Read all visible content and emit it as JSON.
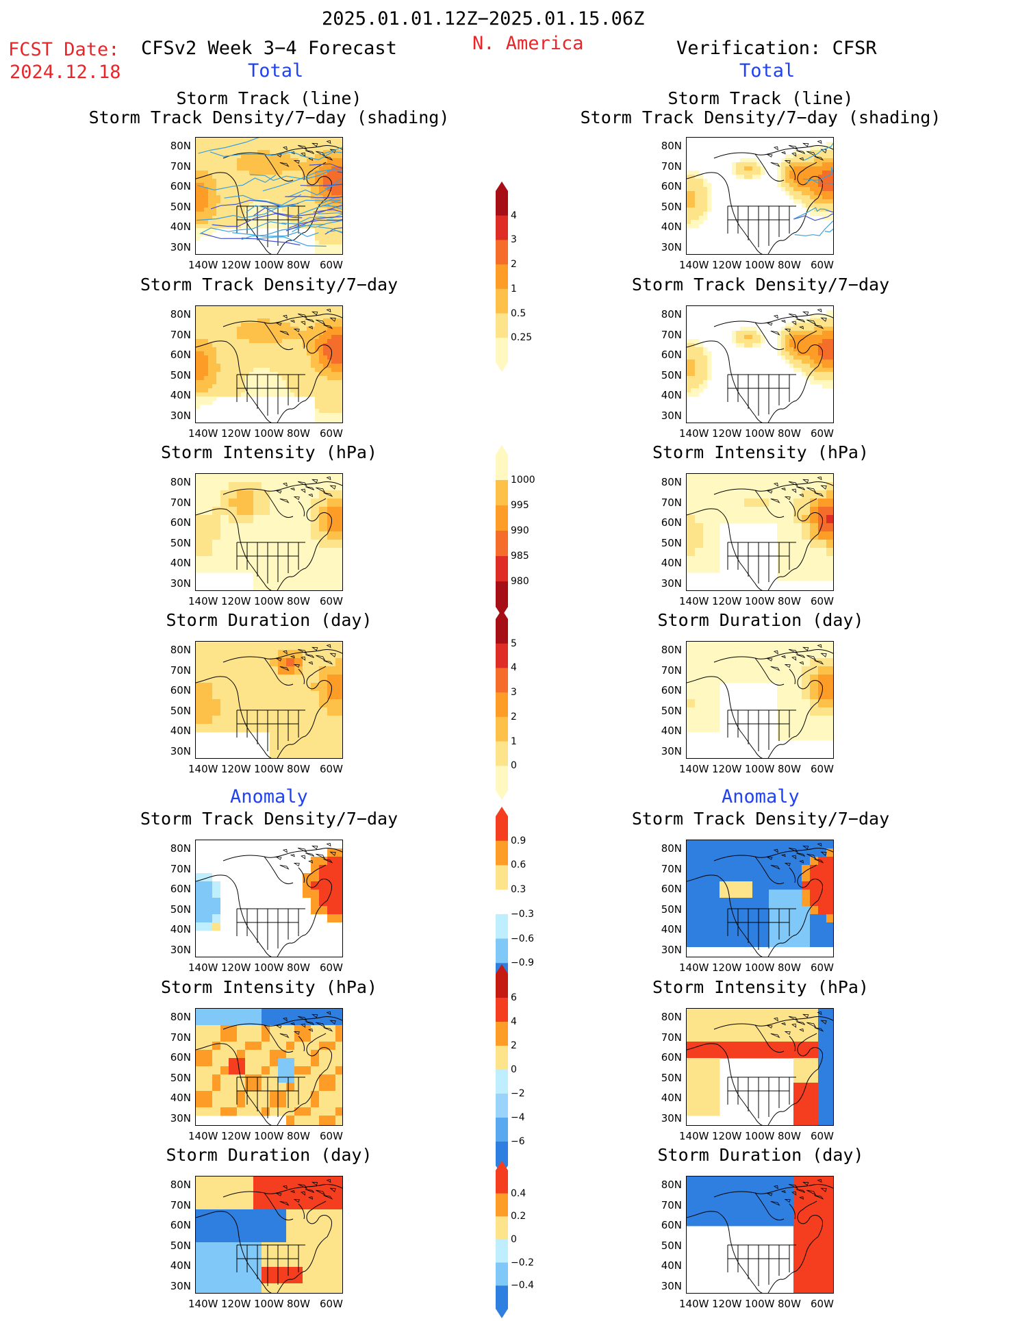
{
  "header": {
    "period": "2025.01.01.12Z−2025.01.15.06Z",
    "fcst_label": "FCST Date:",
    "fcst_date": "2024.12.18",
    "model_title": "CFSv2 Week 3−4 Forecast",
    "region": "N. America",
    "verification": "Verification: CFSR",
    "left_total": "Total",
    "right_total": "Total",
    "left_anomaly": "Anomaly",
    "right_anomaly": "Anomaly"
  },
  "axes": {
    "lat_labels": [
      "80N",
      "70N",
      "60N",
      "50N",
      "40N",
      "30N"
    ],
    "lon_labels": [
      "140W",
      "120W",
      "100W",
      "80W",
      "60W"
    ]
  },
  "panels": {
    "left": [
      {
        "title_line1": "Storm Track (line)",
        "title_line2": "Storm Track Density/7−day (shading)"
      },
      {
        "title_line1": "",
        "title_line2": "Storm Track Density/7−day"
      },
      {
        "title_line1": "",
        "title_line2": "Storm Intensity (hPa)"
      },
      {
        "title_line1": "",
        "title_line2": "Storm Duration (day)"
      },
      {
        "title_line1": "",
        "title_line2": "Storm Track Density/7−day"
      },
      {
        "title_line1": "",
        "title_line2": "Storm Intensity (hPa)"
      },
      {
        "title_line1": "",
        "title_line2": "Storm Duration (day)"
      }
    ],
    "right": [
      {
        "title_line1": "Storm Track (line)",
        "title_line2": "Storm Track Density/7−day (shading)"
      },
      {
        "title_line1": "",
        "title_line2": "Storm Track Density/7−day"
      },
      {
        "title_line1": "",
        "title_line2": "Storm Intensity (hPa)"
      },
      {
        "title_line1": "",
        "title_line2": "Storm Duration (day)"
      },
      {
        "title_line1": "",
        "title_line2": "Storm Track Density/7−day"
      },
      {
        "title_line1": "",
        "title_line2": "Storm Intensity (hPa)"
      },
      {
        "title_line1": "",
        "title_line2": "Storm Duration (day)"
      }
    ]
  },
  "colorbars": {
    "density": {
      "ticks": [
        "4",
        "3",
        "2",
        "1",
        "0.5",
        "0.25"
      ],
      "colors": [
        "#a50f15",
        "#de2d26",
        "#f46d2a",
        "#fd9d27",
        "#fdc048",
        "#fde38a",
        "#fff8c0"
      ]
    },
    "intensity": {
      "ticks": [
        "1000",
        "995",
        "990",
        "985",
        "980"
      ],
      "colors": [
        "#fff8c0",
        "#fdc048",
        "#fd9d27",
        "#f46d2a",
        "#de2d26",
        "#a50f15"
      ]
    },
    "duration": {
      "ticks": [
        "5",
        "4",
        "3",
        "2",
        "1",
        "0"
      ],
      "colors": [
        "#a50f15",
        "#de2d26",
        "#f46d2a",
        "#fd9d27",
        "#fdc048",
        "#fde38a",
        "#fff8c0"
      ]
    },
    "density_anom": {
      "ticks": [
        "0.9",
        "0.6",
        "0.3",
        "−0.3",
        "−0.6",
        "−0.9"
      ],
      "colors": [
        "#f43e1f",
        "#fd9d27",
        "#fde38a",
        "#ffffff",
        "#bfefff",
        "#7fc8f8",
        "#2f7fe0"
      ]
    },
    "intensity_anom": {
      "ticks": [
        "6",
        "4",
        "2",
        "0",
        "−2",
        "−4",
        "−6"
      ],
      "colors": [
        "#c41a12",
        "#f43e1f",
        "#fd9d27",
        "#fde38a",
        "#bfefff",
        "#9ad4fa",
        "#5aa8f0",
        "#2f7fe0"
      ]
    },
    "duration_anom": {
      "ticks": [
        "0.4",
        "0.2",
        "0",
        "−0.2",
        "−0.4"
      ],
      "colors": [
        "#f43e1f",
        "#fd9d27",
        "#fde38a",
        "#bfefff",
        "#7fc8f8",
        "#2f7fe0"
      ]
    }
  },
  "colors": {
    "accent_red": "#e8262a",
    "accent_blue": "#2042f0"
  }
}
